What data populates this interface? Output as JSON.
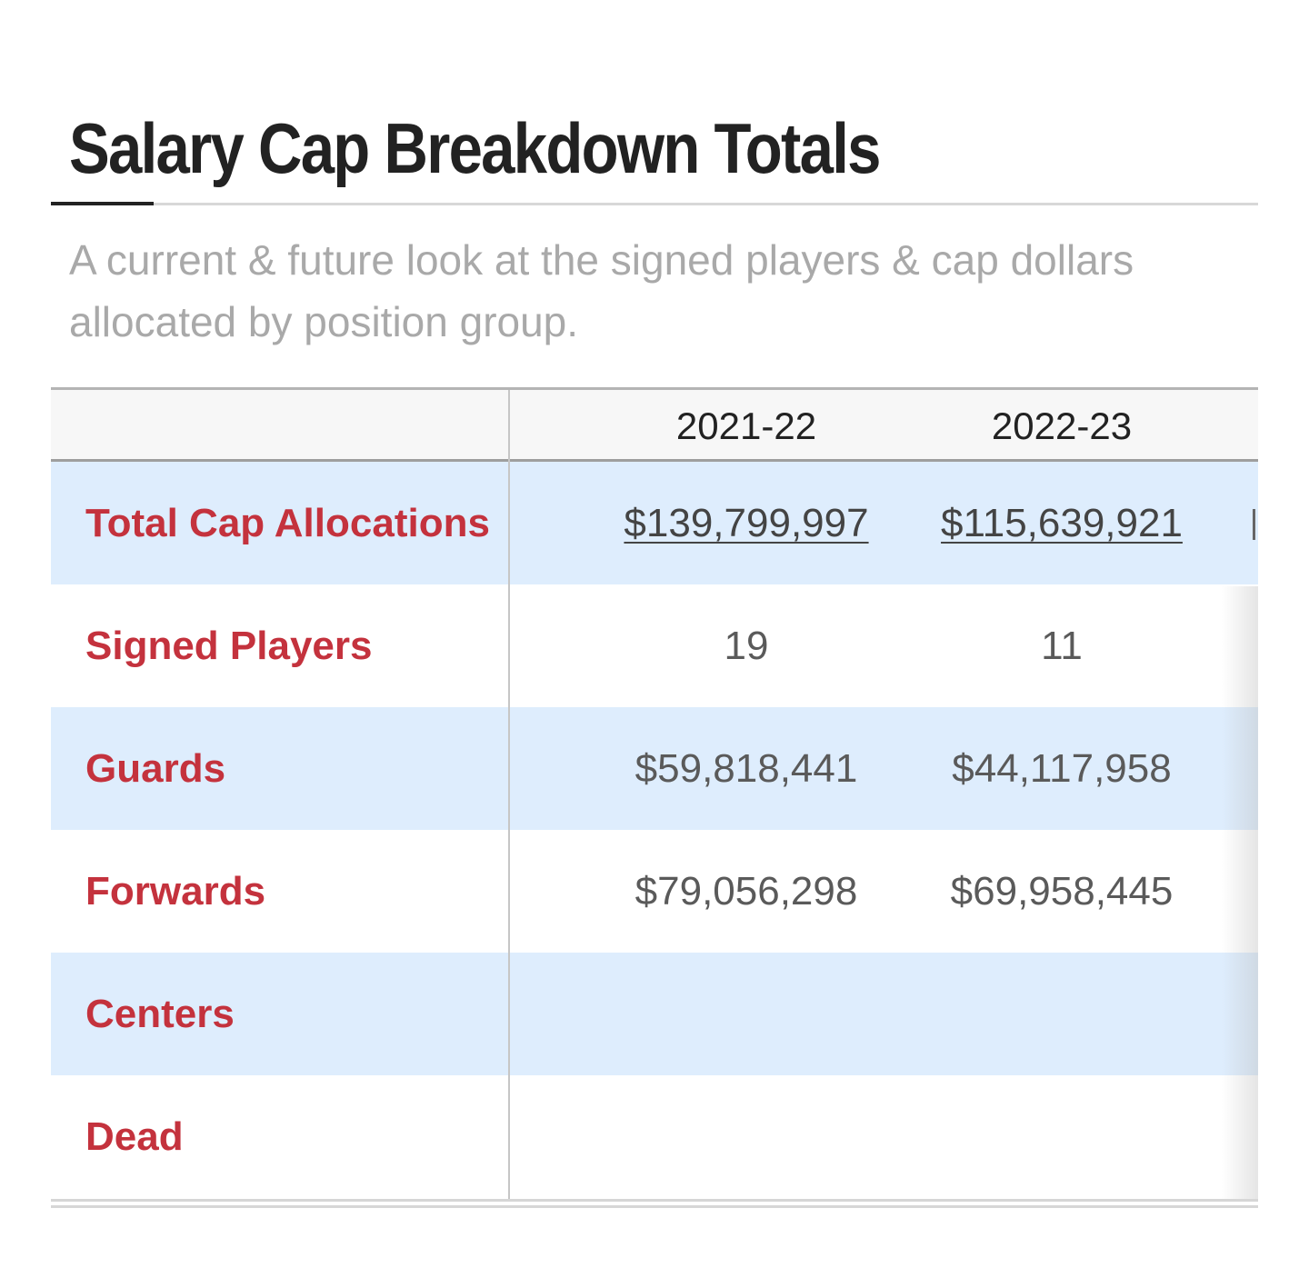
{
  "section": {
    "title": "Salary Cap Breakdown Totals",
    "subtitle": "A current & future look at the signed players & cap dollars allocated by position group."
  },
  "table": {
    "columns": [
      "2021-22",
      "2022-23"
    ],
    "rows": [
      {
        "label": "Total Cap Allocations",
        "values": [
          "$139,799,997",
          "$115,639,921"
        ],
        "linked": true
      },
      {
        "label": "Signed Players",
        "values": [
          "19",
          "11"
        ]
      },
      {
        "label": "Guards",
        "values": [
          "$59,818,441",
          "$44,117,958"
        ]
      },
      {
        "label": "Forwards",
        "values": [
          "$79,056,298",
          "$69,958,445"
        ]
      },
      {
        "label": "Centers",
        "values": [
          "",
          ""
        ]
      },
      {
        "label": "Dead",
        "values": [
          "",
          ""
        ]
      }
    ]
  },
  "colors": {
    "label_red": "#c4323d",
    "row_shade": "#deedfd",
    "title_text": "#222222"
  }
}
